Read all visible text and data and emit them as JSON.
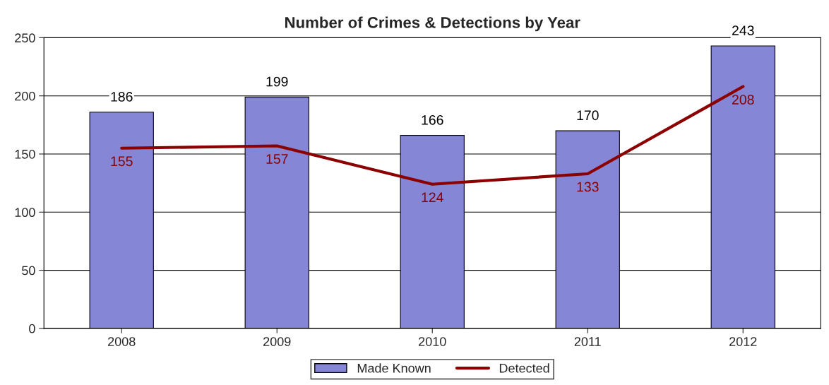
{
  "chart_data": {
    "type": "bar",
    "title": "Number of Crimes & Detections by Year",
    "categories": [
      "2008",
      "2009",
      "2010",
      "2011",
      "2012"
    ],
    "series": [
      {
        "name": "Made Known",
        "color": "#8686d6",
        "values": [
          186,
          199,
          166,
          170,
          243
        ]
      },
      {
        "name": "Detected",
        "type": "line",
        "color": "#8b0000",
        "values": [
          155,
          157,
          124,
          133,
          208
        ]
      }
    ],
    "ylim": [
      0,
      250
    ],
    "yticks": [
      0,
      50,
      100,
      150,
      200,
      250
    ],
    "grid": "y",
    "legend": "bottom",
    "data_labels": true,
    "marker": "none",
    "line_style": "solid"
  }
}
